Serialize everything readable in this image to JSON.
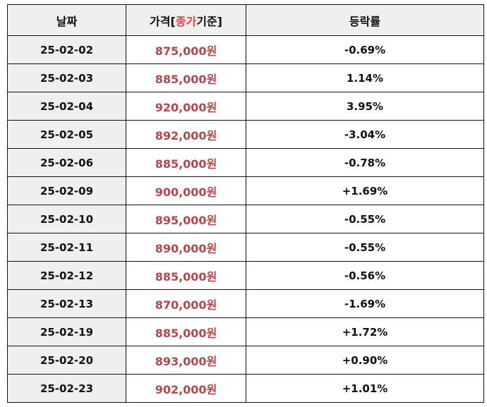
{
  "table": {
    "headers": {
      "date": "날짜",
      "price_prefix": "가격[",
      "price_highlight": "종가",
      "price_suffix": "기준]",
      "change": "등락률"
    },
    "rows": [
      {
        "date": "25-02-02",
        "price": "875,000원",
        "change": "-0.69%"
      },
      {
        "date": "25-02-03",
        "price": "885,000원",
        "change": "1.14%"
      },
      {
        "date": "25-02-04",
        "price": "920,000원",
        "change": "3.95%"
      },
      {
        "date": "25-02-05",
        "price": "892,000원",
        "change": "-3.04%"
      },
      {
        "date": "25-02-06",
        "price": "885,000원",
        "change": "-0.78%"
      },
      {
        "date": "25-02-09",
        "price": "900,000원",
        "change": "+1.69%"
      },
      {
        "date": "25-02-10",
        "price": "895,000원",
        "change": "-0.55%"
      },
      {
        "date": "25-02-11",
        "price": "890,000원",
        "change": "-0.55%"
      },
      {
        "date": "25-02-12",
        "price": "885,000원",
        "change": "-0.56%"
      },
      {
        "date": "25-02-13",
        "price": "870,000원",
        "change": "-1.69%"
      },
      {
        "date": "25-02-19",
        "price": "885,000원",
        "change": "+1.72%"
      },
      {
        "date": "25-02-20",
        "price": "893,000원",
        "change": "+0.90%"
      },
      {
        "date": "25-02-23",
        "price": "902,000원",
        "change": "+1.01%"
      }
    ]
  },
  "colors": {
    "price_text": "#b5464b",
    "header_highlight": "#d6484d",
    "header_bg": "#efefef"
  }
}
